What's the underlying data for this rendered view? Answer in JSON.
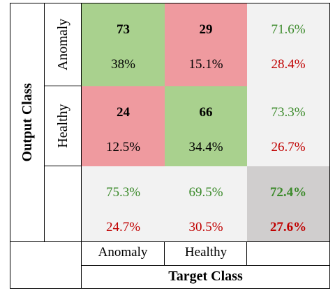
{
  "chart_data": {
    "type": "table",
    "title": "",
    "xlabel": "Target Class",
    "ylabel": "Output Class",
    "row_labels": [
      "Anomaly",
      "Healthy"
    ],
    "col_labels": [
      "Anomaly",
      "Healthy"
    ],
    "cells": [
      [
        {
          "count": "73",
          "pct": "38%"
        },
        {
          "count": "29",
          "pct": "15.1%"
        }
      ],
      [
        {
          "count": "24",
          "pct": "12.5%"
        },
        {
          "count": "66",
          "pct": "34.4%"
        }
      ]
    ],
    "row_summary": [
      {
        "correct": "71.6%",
        "error": "28.4%"
      },
      {
        "correct": "73.3%",
        "error": "26.7%"
      }
    ],
    "col_summary": [
      {
        "correct": "75.3%",
        "error": "24.7%"
      },
      {
        "correct": "69.5%",
        "error": "30.5%"
      }
    ],
    "overall": {
      "correct": "72.4%",
      "error": "27.6%"
    },
    "colors": {
      "correct_cell": "#a9d18e",
      "wrong_cell": "#ef9a9f",
      "summary_cell": "#f2f2f2",
      "overall_cell": "#d0cece",
      "correct_text": "#3b8a2a",
      "error_text": "#c00000"
    }
  }
}
